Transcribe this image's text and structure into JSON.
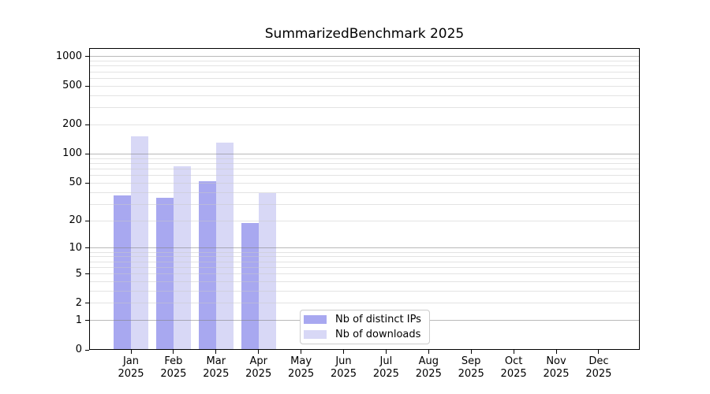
{
  "chart_data": {
    "type": "bar",
    "title": "SummarizedBenchmark 2025",
    "x_axis": {
      "months": [
        "Jan",
        "Feb",
        "Mar",
        "Apr",
        "May",
        "Jun",
        "Jul",
        "Aug",
        "Sep",
        "Oct",
        "Nov",
        "Dec"
      ],
      "year": "2025"
    },
    "y_axis": {
      "scale": "log1p",
      "tick_values": [
        0,
        1,
        2,
        5,
        10,
        20,
        50,
        100,
        200,
        500,
        1000
      ],
      "tick_labels": [
        "0",
        "1",
        "2",
        "5",
        "10",
        "20",
        "50",
        "100",
        "200",
        "500",
        "1000"
      ],
      "major_gridlines": [
        1,
        10,
        100,
        1000
      ],
      "minor_gridlines": [
        2,
        3,
        4,
        5,
        6,
        7,
        8,
        9,
        20,
        30,
        40,
        50,
        60,
        70,
        80,
        90,
        200,
        300,
        400,
        500,
        600,
        700,
        800,
        900
      ],
      "ylim": [
        0,
        1260
      ]
    },
    "series": [
      {
        "name": "Nb of distinct IPs",
        "key": "distinct-ips",
        "color": "#a8a8f0",
        "values": [
          37,
          35,
          52,
          19,
          0,
          0,
          0,
          0,
          0,
          0,
          0,
          0
        ]
      },
      {
        "name": "Nb of downloads",
        "key": "downloads",
        "color": "#d8d8f6",
        "values": [
          153,
          74,
          130,
          39,
          0,
          0,
          0,
          0,
          0,
          0,
          0,
          0
        ]
      }
    ],
    "legend": {
      "position": "lower center",
      "entries": [
        "Nb of distinct IPs",
        "Nb of downloads"
      ]
    },
    "grid": true
  },
  "colors": {
    "background": "#ffffff",
    "spine": "#000000",
    "text": "#000000",
    "major_grid": "rgba(128,128,128,0.55)",
    "minor_grid": "rgba(200,200,200,0.5)",
    "legend_border": "#cccccc",
    "bar_distinct_ips": "#a8a8f0",
    "bar_downloads": "#d8d8f6"
  }
}
